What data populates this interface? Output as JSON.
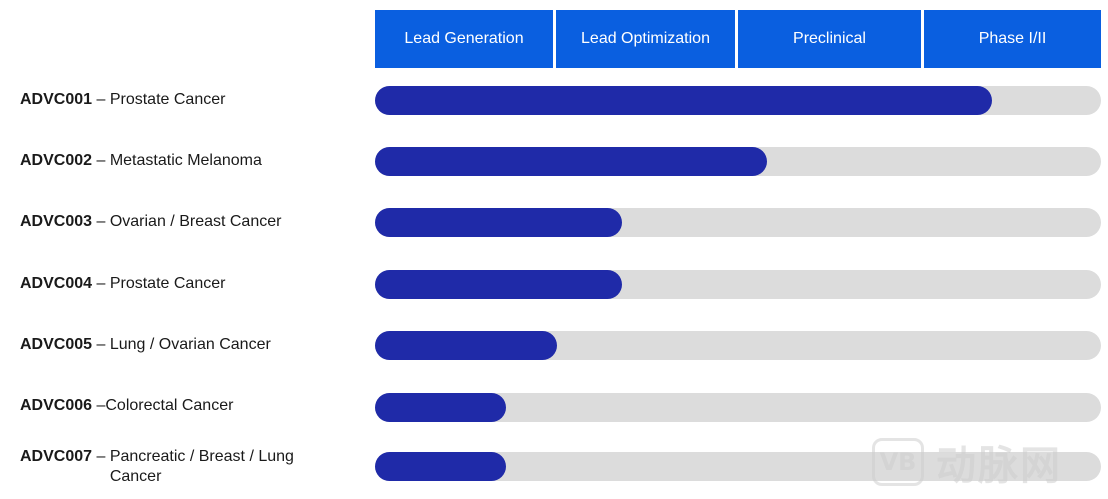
{
  "chart_data": {
    "type": "bar",
    "orientation": "horizontal",
    "stages": [
      "Lead Generation",
      "Lead Optimization",
      "Preclinical",
      "Phase I/II"
    ],
    "rows": [
      {
        "code": "ADVC001",
        "sep": " – ",
        "indication": "Prostate Cancer",
        "progress": 0.85
      },
      {
        "code": "ADVC002",
        "sep": " – ",
        "indication": "Metastatic Melanoma",
        "progress": 0.54
      },
      {
        "code": "ADVC003",
        "sep": " – ",
        "indication": "Ovarian / Breast Cancer",
        "progress": 0.34
      },
      {
        "code": "ADVC004",
        "sep": " – ",
        "indication": "Prostate Cancer",
        "progress": 0.34
      },
      {
        "code": "ADVC005",
        "sep": " – ",
        "indication": "Lung / Ovarian Cancer",
        "progress": 0.25
      },
      {
        "code": "ADVC006",
        "sep": " –",
        "indication": "Colorectal Cancer",
        "progress": 0.18
      },
      {
        "code": "ADVC007",
        "sep": " – ",
        "indication": "Pancreatic / Breast / Lung Cancer",
        "progress": 0.18
      }
    ],
    "colors": {
      "header": "#0a5fe0",
      "fill": "#1f2aa8",
      "track": "#dcdcdc"
    }
  },
  "watermark": {
    "logo_text": "VB",
    "text": "动脉网"
  }
}
